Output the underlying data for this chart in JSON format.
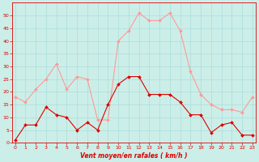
{
  "x": [
    0,
    1,
    2,
    3,
    4,
    5,
    6,
    7,
    8,
    9,
    10,
    11,
    12,
    13,
    14,
    15,
    16,
    17,
    18,
    19,
    20,
    21,
    22,
    23
  ],
  "wind_mean": [
    1,
    7,
    7,
    14,
    11,
    10,
    5,
    8,
    5,
    15,
    23,
    26,
    26,
    19,
    19,
    19,
    16,
    11,
    11,
    4,
    7,
    8,
    3,
    3
  ],
  "wind_gust": [
    18,
    16,
    21,
    25,
    31,
    21,
    26,
    25,
    9,
    9,
    40,
    44,
    51,
    48,
    48,
    51,
    44,
    28,
    19,
    15,
    13,
    13,
    12,
    18
  ],
  "bg_color": "#cceee8",
  "grid_color": "#aaddda",
  "mean_color": "#dd0000",
  "gust_color": "#ff9999",
  "xlabel": "Vent moyen/en rafales ( km/h )",
  "ylim": [
    0,
    55
  ],
  "yticks": [
    0,
    5,
    10,
    15,
    20,
    25,
    30,
    35,
    40,
    45,
    50
  ],
  "xticks": [
    0,
    1,
    2,
    3,
    4,
    5,
    6,
    7,
    8,
    9,
    10,
    11,
    12,
    13,
    14,
    15,
    16,
    17,
    18,
    19,
    20,
    21,
    22,
    23
  ]
}
